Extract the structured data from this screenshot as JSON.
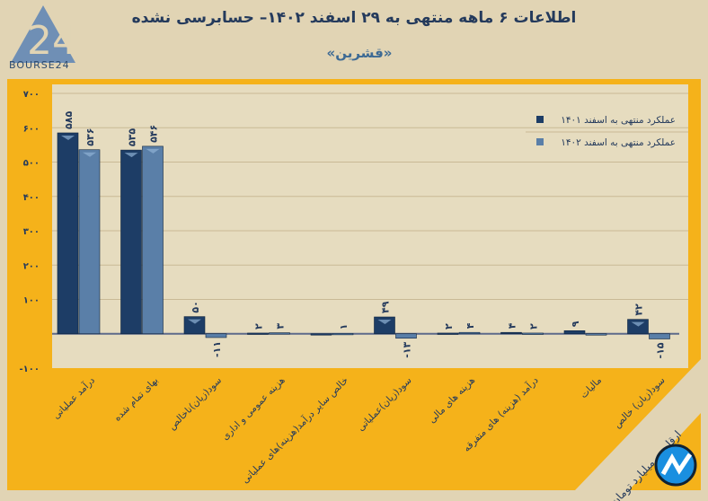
{
  "header": {
    "title": "اطلاعات ۶ ماهه منتهی به ۲۹ اسفند ۱۴۰۲– حسابرسی نشده",
    "subtitle": "«قشرین»",
    "logo_text": "BOURSE24"
  },
  "footer": {
    "unit_note": "ارقام به میلیارد تومان"
  },
  "colors": {
    "series1": "#1d3d66",
    "series2": "#5a7fa8",
    "panel": "#f5b21a",
    "plot_bg": "#e6dcbf",
    "text": "#243a5c"
  },
  "chart_data": {
    "type": "bar",
    "title": "اطلاعات ۶ ماهه منتهی به ۲۹ اسفند ۱۴۰۲– حسابرسی نشده",
    "categories": [
      "درآمد عملیاتی",
      "بهای تمام شده",
      "سود(زیان)ناخالص",
      "هزینه عمومی و اداری",
      "خالص سایر درآمد(هزینه)های عملیاتی",
      "سود(زیان)عملیاتی",
      "هزینه های مالی",
      "درآمد (هزینه) های متفرقه",
      "مالیات",
      "سود(زیان) خالص"
    ],
    "series": [
      {
        "name": "عملکرد منتهی به اسفند ۱۴۰۱",
        "values": [
          585,
          535,
          50,
          2,
          0,
          49,
          2,
          4,
          9,
          42
        ],
        "labels": [
          "۵۸۵",
          "۵۳۵",
          "۵۰",
          "۲",
          "",
          "۴۹",
          "۲",
          "۴",
          "۹",
          "۴۲"
        ]
      },
      {
        "name": "عملکرد منتهی به اسفند ۱۴۰۲",
        "values": [
          536,
          546,
          -11,
          3,
          1,
          -13,
          4,
          2,
          0,
          -15
        ],
        "labels": [
          "۵۳۶",
          "۵۴۶",
          "-۱۱",
          "۳",
          "۱",
          "-۱۳",
          "۴",
          "۲",
          "",
          "-۱۵"
        ]
      }
    ],
    "ylim": [
      -100,
      700
    ],
    "yticks": [
      -100,
      0,
      100,
      200,
      300,
      400,
      500,
      600,
      700
    ],
    "ytick_labels": [
      "-۱۰۰",
      "",
      "۱۰۰",
      "۲۰۰",
      "۳۰۰",
      "۴۰۰",
      "۵۰۰",
      "۶۰۰",
      "۷۰۰"
    ],
    "legend": "top-right",
    "grid": true
  }
}
